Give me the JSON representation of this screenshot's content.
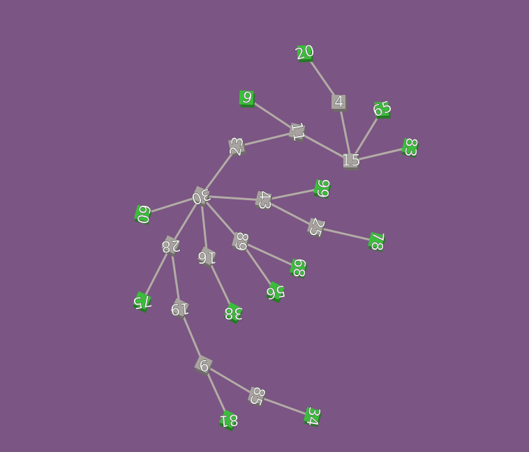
{
  "scene": {
    "background": "#7b5583",
    "edge_color": "#b2aca6",
    "inner_node_color": "#a8a39f",
    "leaf_node_color": "#3bbd3b"
  },
  "nodes": [
    {
      "id": "n20",
      "label": "20",
      "kind": "leaf"
    },
    {
      "id": "n4",
      "label": "4",
      "kind": "inner"
    },
    {
      "id": "n9a",
      "label": "9",
      "kind": "leaf"
    },
    {
      "id": "n65",
      "label": "65",
      "kind": "leaf"
    },
    {
      "id": "n11",
      "label": "11",
      "kind": "inner"
    },
    {
      "id": "n83",
      "label": "83",
      "kind": "leaf"
    },
    {
      "id": "n23",
      "label": "23",
      "kind": "inner"
    },
    {
      "id": "n15",
      "label": "15",
      "kind": "inner"
    },
    {
      "id": "n30",
      "label": "30",
      "kind": "inner"
    },
    {
      "id": "n99",
      "label": "99",
      "kind": "leaf"
    },
    {
      "id": "n43",
      "label": "43",
      "kind": "inner"
    },
    {
      "id": "n60",
      "label": "60",
      "kind": "leaf"
    },
    {
      "id": "n25",
      "label": "25",
      "kind": "inner"
    },
    {
      "id": "n78",
      "label": "78",
      "kind": "leaf"
    },
    {
      "id": "n28",
      "label": "28",
      "kind": "inner"
    },
    {
      "id": "n89",
      "label": "89",
      "kind": "inner"
    },
    {
      "id": "n16",
      "label": "16",
      "kind": "inner"
    },
    {
      "id": "n68",
      "label": "68",
      "kind": "leaf"
    },
    {
      "id": "n75",
      "label": "75",
      "kind": "leaf"
    },
    {
      "id": "n56",
      "label": "56",
      "kind": "leaf"
    },
    {
      "id": "n19",
      "label": "19",
      "kind": "inner"
    },
    {
      "id": "n38",
      "label": "38",
      "kind": "leaf"
    },
    {
      "id": "n9b",
      "label": "9",
      "kind": "inner"
    },
    {
      "id": "n85",
      "label": "85",
      "kind": "inner"
    },
    {
      "id": "n34",
      "label": "34",
      "kind": "leaf"
    },
    {
      "id": "n81",
      "label": "81",
      "kind": "leaf"
    }
  ],
  "edges": [
    [
      "n20",
      "n4"
    ],
    [
      "n4",
      "n15"
    ],
    [
      "n65",
      "n15"
    ],
    [
      "n83",
      "n15"
    ],
    [
      "n11",
      "n15"
    ],
    [
      "n9a",
      "n11"
    ],
    [
      "n23",
      "n11"
    ],
    [
      "n30",
      "n23"
    ],
    [
      "n30",
      "n43"
    ],
    [
      "n43",
      "n99"
    ],
    [
      "n43",
      "n25"
    ],
    [
      "n25",
      "n78"
    ],
    [
      "n30",
      "n60"
    ],
    [
      "n30",
      "n28"
    ],
    [
      "n30",
      "n16"
    ],
    [
      "n30",
      "n89"
    ],
    [
      "n89",
      "n68"
    ],
    [
      "n89",
      "n56"
    ],
    [
      "n16",
      "n38"
    ],
    [
      "n28",
      "n75"
    ],
    [
      "n28",
      "n19"
    ],
    [
      "n19",
      "n9b"
    ],
    [
      "n9b",
      "n85"
    ],
    [
      "n85",
      "n34"
    ],
    [
      "n9b",
      "n81"
    ]
  ]
}
